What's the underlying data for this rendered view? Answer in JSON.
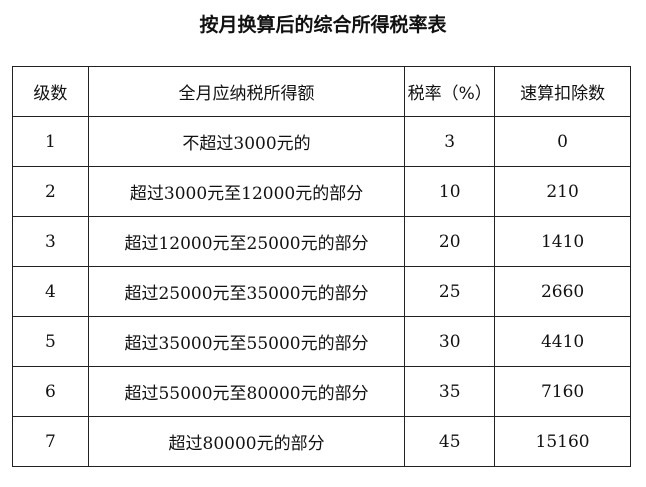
{
  "title": "按月换算后的综合所得税率表",
  "headers": [
    "级数",
    "全月应纳税所得额",
    "税率（%）",
    "速算扣除数"
  ],
  "rows": [
    [
      "1",
      "不超过3000元的",
      "3",
      "0"
    ],
    [
      "2",
      "超过3000元至12000元的部分",
      "10",
      "210"
    ],
    [
      "3",
      "超过12000元至25000元的部分",
      "20",
      "1410"
    ],
    [
      "4",
      "超过25000元至35000元的部分",
      "25",
      "2660"
    ],
    [
      "5",
      "超过35000元至55000元的部分",
      "30",
      "4410"
    ],
    [
      "6",
      "超过55000元至80000元的部分",
      "35",
      "7160"
    ],
    [
      "7",
      "超过80000元的部分",
      "45",
      "15160"
    ]
  ]
}
